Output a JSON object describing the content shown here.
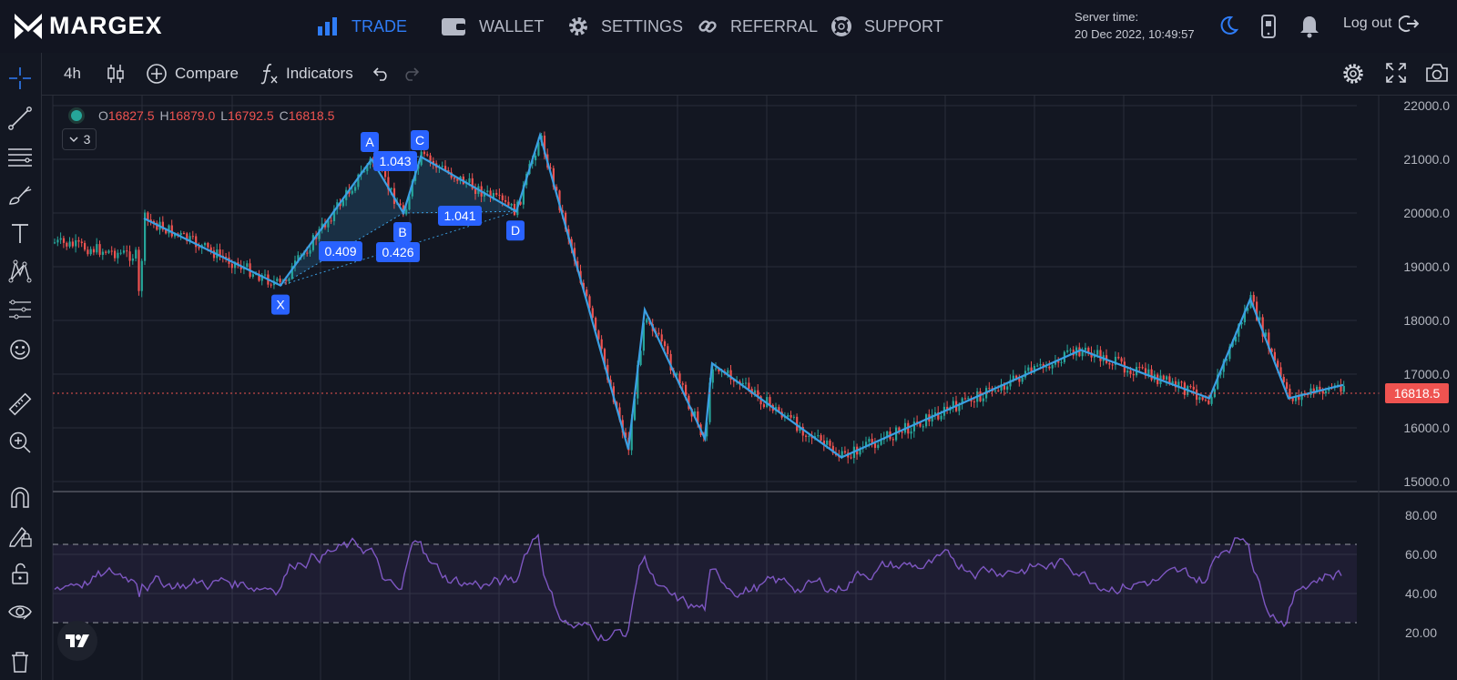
{
  "brand": {
    "name": "MARGEX"
  },
  "nav": {
    "trade": "TRADE",
    "wallet": "WALLET",
    "settings": "SETTINGS",
    "referral": "REFERRAL",
    "support": "SUPPORT"
  },
  "server": {
    "label": "Server time:",
    "value": "20 Dec 2022, 10:49:57"
  },
  "logout": "Log out",
  "toolbar": {
    "interval": "4h",
    "compare": "Compare",
    "indicators": "Indicators"
  },
  "legend": {
    "o_label": "O",
    "o_value": "16827.5",
    "h_label": "H",
    "h_value": "16879.0",
    "l_label": "L",
    "l_value": "16792.5",
    "c_label": "C",
    "c_value": "16818.5",
    "collapsed_count": "3"
  },
  "colors": {
    "up": "#26a69a",
    "down": "#ef5350",
    "accent": "#2f7cf6",
    "pattern": "#3a9fe3",
    "rsi": "#7e57c2"
  },
  "chart_data": {
    "type": "candlestick",
    "price_axis": {
      "ticks": [
        "22000.0",
        "21000.0",
        "20000.0",
        "19000.0",
        "18000.0",
        "17000.0",
        "16000.0",
        "15000.0"
      ],
      "ylim": [
        15000,
        22000
      ]
    },
    "last_price": "16818.5",
    "pattern": {
      "points": [
        {
          "name": "X",
          "value": 18650
        },
        {
          "name": "A",
          "value": 21000
        },
        {
          "name": "B",
          "value": 20000
        },
        {
          "name": "C",
          "value": 21050
        },
        {
          "name": "D",
          "value": 20030
        }
      ],
      "ratios": [
        "1.043",
        "1.041",
        "0.409",
        "0.426"
      ]
    },
    "zigzag": [
      19900,
      18650,
      21000,
      20000,
      21050,
      20030,
      21450,
      15600,
      18200,
      15800,
      17200,
      15450,
      17450,
      16550,
      18400,
      16550,
      16800
    ],
    "rsi": {
      "ticks": [
        "80.00",
        "60.00",
        "40.00",
        "20.00"
      ],
      "upper": 70,
      "lower": 30
    }
  }
}
